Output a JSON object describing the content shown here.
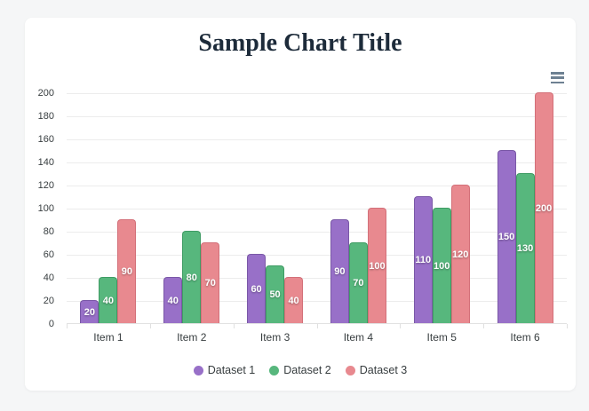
{
  "page": {
    "background": "#f5f6f7"
  },
  "card": {
    "background": "#ffffff"
  },
  "menu_icon": {
    "name": "hamburger-menu-icon",
    "color": "#6e8192"
  },
  "chart_data": {
    "type": "bar",
    "title": "Sample Chart Title",
    "title_color": "#1d2b3a",
    "categories": [
      "Item 1",
      "Item 2",
      "Item 3",
      "Item 4",
      "Item 5",
      "Item 6"
    ],
    "series": [
      {
        "name": "Dataset 1",
        "color": "#9870c8",
        "border_color": "#7a58a7",
        "values": [
          20,
          40,
          60,
          90,
          110,
          150
        ]
      },
      {
        "name": "Dataset 2",
        "color": "#57b77d",
        "border_color": "#3f9c64",
        "values": [
          40,
          80,
          50,
          70,
          100,
          130
        ]
      },
      {
        "name": "Dataset 3",
        "color": "#e8898f",
        "border_color": "#d37079",
        "values": [
          90,
          70,
          40,
          100,
          120,
          200
        ]
      }
    ],
    "ylim": [
      0,
      200
    ],
    "ytick_step": 20,
    "yticks": [
      0,
      20,
      40,
      60,
      80,
      100,
      120,
      140,
      160,
      180,
      200
    ],
    "grid": true,
    "grid_color": "#ececec",
    "axis_label_color": "#373d3f",
    "data_labels": true,
    "data_label_color": "#ffffff",
    "legend_position": "bottom"
  }
}
